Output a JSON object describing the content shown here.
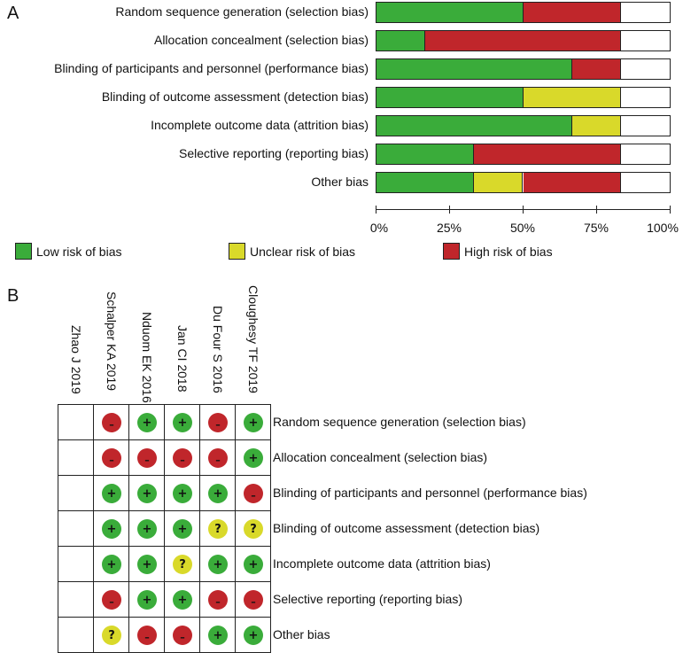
{
  "panel_a_letter": "A",
  "panel_b_letter": "B",
  "colors": {
    "low": "#3aac3a",
    "unclear": "#d9d92a",
    "high": "#c0262b"
  },
  "icons": {
    "low": "plus-icon",
    "unclear": "question-icon",
    "high": "minus-icon"
  },
  "symbols": {
    "low": "+",
    "unclear": "?",
    "high": "–"
  },
  "chart_data": [
    {
      "type": "bar",
      "orientation": "horizontal",
      "stacked": true,
      "categories": [
        "Random sequence generation (selection bias)",
        "Allocation concealment (selection bias)",
        "Blinding of participants and personnel (performance bias)",
        "Blinding of outcome assessment (detection bias)",
        "Incomplete outcome data (attrition bias)",
        "Selective reporting (reporting bias)",
        "Other bias"
      ],
      "series": [
        {
          "name": "Low risk of bias",
          "values": [
            50,
            16.7,
            66.7,
            50,
            66.7,
            33.3,
            33.3
          ]
        },
        {
          "name": "Unclear risk of bias",
          "values": [
            0,
            0,
            0,
            33.3,
            16.7,
            0,
            16.7
          ]
        },
        {
          "name": "High risk of bias",
          "values": [
            33.3,
            66.7,
            16.7,
            0,
            0,
            50,
            33.3
          ]
        }
      ],
      "xlim": [
        0,
        100
      ],
      "x_ticks": [
        "0%",
        "25%",
        "50%",
        "75%",
        "100%"
      ],
      "legend": [
        "Low risk of bias",
        "Unclear risk of bias",
        "High risk of bias"
      ]
    },
    {
      "type": "table",
      "studies": [
        "Zhao J 2019",
        "Schalper KA 2019",
        "Nduom EK 2016",
        "Jan CI 2018",
        "Du Four S 2016",
        "Cloughesy TF 2019"
      ],
      "domains": [
        "Random sequence generation (selection bias)",
        "Allocation concealment (selection bias)",
        "Blinding of participants and personnel (performance bias)",
        "Blinding of outcome assessment (detection bias)",
        "Incomplete outcome data (attrition bias)",
        "Selective reporting (reporting bias)",
        "Other bias"
      ],
      "judgements": [
        [
          null,
          "high",
          "low",
          "low",
          "high",
          "low"
        ],
        [
          null,
          "high",
          "high",
          "high",
          "high",
          "low"
        ],
        [
          null,
          "low",
          "low",
          "low",
          "low",
          "high"
        ],
        [
          null,
          "low",
          "low",
          "low",
          "unclear",
          "unclear"
        ],
        [
          null,
          "low",
          "low",
          "unclear",
          "low",
          "low"
        ],
        [
          null,
          "high",
          "low",
          "low",
          "high",
          "high"
        ],
        [
          null,
          "unclear",
          "high",
          "high",
          "low",
          "low"
        ]
      ]
    }
  ]
}
